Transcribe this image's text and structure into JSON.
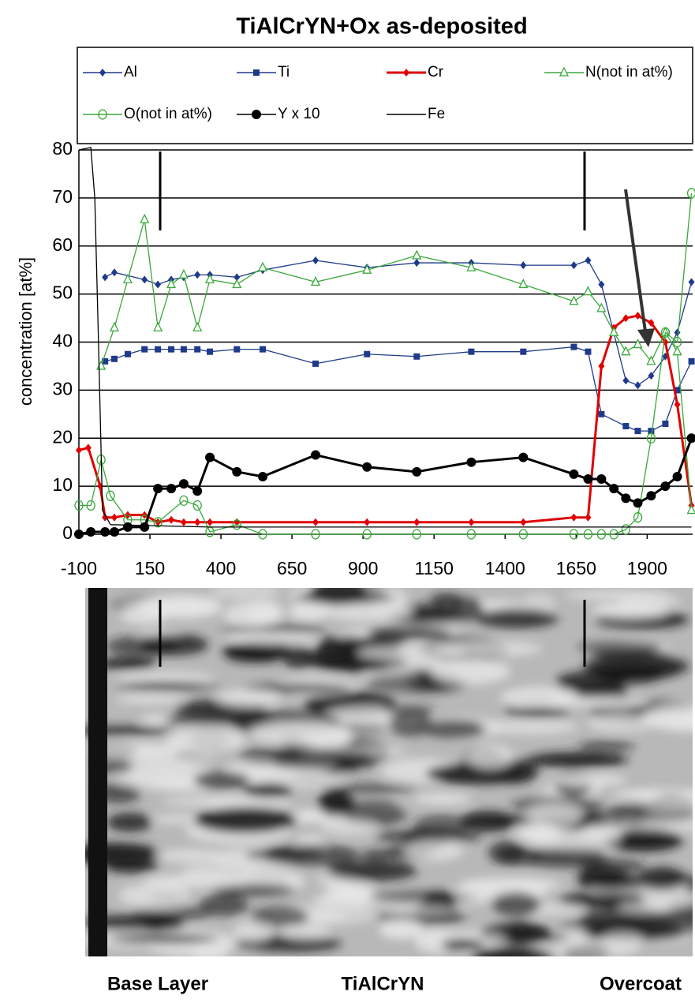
{
  "chart_data": {
    "type": "line",
    "title": "TiAlCrYN+Ox as-deposited",
    "ylabel": "concentration [at%]",
    "xlim": [
      -100,
      2060
    ],
    "xticks": [
      -100,
      150,
      400,
      650,
      900,
      1150,
      1400,
      1650,
      1900
    ],
    "ylim": [
      0,
      80
    ],
    "yticks": [
      0,
      10,
      20,
      30,
      40,
      50,
      60,
      70,
      80
    ],
    "grid": true,
    "series": [
      {
        "name": "Al",
        "color": "#1f3a8a",
        "marker": "diamond",
        "x": [
          -8,
          25,
          131,
          178,
          225,
          269,
          317,
          361,
          456,
          547,
          733,
          914,
          1089,
          1281,
          1464,
          1642,
          1692,
          1739,
          1825,
          1867,
          1914,
          1964,
          2006,
          2056
        ],
        "values": [
          53.5,
          54.5,
          53,
          52,
          53,
          53.5,
          54,
          54,
          53.5,
          55,
          57,
          55.5,
          56.5,
          56.5,
          56,
          56,
          57,
          52,
          32,
          31,
          33,
          37,
          42,
          52.5
        ]
      },
      {
        "name": "Ti",
        "color": "#1f3a8a",
        "marker": "square",
        "x": [
          -8,
          25,
          72,
          131,
          178,
          225,
          269,
          317,
          361,
          456,
          547,
          733,
          914,
          1089,
          1281,
          1464,
          1642,
          1692,
          1739,
          1825,
          1867,
          1914,
          1964,
          2006,
          2056
        ],
        "values": [
          36,
          36.5,
          37.5,
          38.5,
          38.5,
          38.5,
          38.5,
          38.5,
          38,
          38.5,
          38.5,
          35.5,
          37.5,
          37,
          38,
          38,
          39,
          38,
          25,
          22.5,
          21.5,
          21.5,
          23,
          30,
          36
        ]
      },
      {
        "name": "Cr",
        "color": "#e00000",
        "marker": "diamond",
        "x": [
          -100,
          -67,
          -25,
          -8,
          25,
          72,
          131,
          178,
          225,
          269,
          317,
          361,
          456,
          733,
          914,
          1089,
          1281,
          1464,
          1642,
          1692,
          1739,
          1783,
          1825,
          1867,
          1914,
          1964,
          2006,
          2056
        ],
        "values": [
          17.5,
          18,
          10,
          3.5,
          3.5,
          4,
          4,
          2.5,
          3,
          2.5,
          2.5,
          2.5,
          2.5,
          2.5,
          2.5,
          2.5,
          2.5,
          2.5,
          3.5,
          3.5,
          35,
          43,
          45,
          45.5,
          44,
          40,
          27,
          6
        ]
      },
      {
        "name": "N(not in at%)",
        "color": "#3aa83a",
        "marker": "triangle",
        "x": [
          -22,
          25,
          72,
          131,
          178,
          225,
          269,
          317,
          361,
          456,
          547,
          733,
          914,
          1089,
          1281,
          1464,
          1642,
          1692,
          1739,
          1783,
          1825,
          1867,
          1914,
          1964,
          2006,
          2056
        ],
        "values": [
          35,
          43,
          53,
          65.5,
          43,
          52,
          54,
          43,
          53,
          52,
          55.5,
          52.5,
          55,
          58,
          55.5,
          52,
          48.5,
          50.5,
          47,
          42,
          38,
          39.5,
          36,
          42,
          38,
          5
        ]
      },
      {
        "name": "O(not in at%)",
        "color": "#3aa83a",
        "marker": "circle-open",
        "x": [
          -100,
          -58,
          -22,
          11,
          72,
          131,
          178,
          269,
          317,
          361,
          456,
          547,
          733,
          914,
          1089,
          1281,
          1464,
          1642,
          1692,
          1739,
          1783,
          1825,
          1867,
          1914,
          1964,
          2006,
          2056
        ],
        "values": [
          6,
          6,
          15.5,
          8,
          3,
          3,
          2.5,
          7,
          6,
          0.5,
          2,
          0,
          0,
          0,
          0,
          0,
          0,
          0,
          0,
          0,
          0,
          1,
          3.5,
          20,
          42,
          40,
          71
        ]
      },
      {
        "name": "Y x 10",
        "color": "#000000",
        "marker": "circle",
        "x": [
          -100,
          -58,
          -8,
          25,
          72,
          131,
          178,
          225,
          269,
          317,
          361,
          456,
          547,
          733,
          914,
          1089,
          1281,
          1464,
          1642,
          1692,
          1739,
          1783,
          1825,
          1867,
          1914,
          1964,
          2006,
          2056
        ],
        "values": [
          0,
          0.5,
          0.5,
          0.5,
          1.5,
          1.5,
          9.5,
          9.5,
          10.5,
          9,
          16,
          13,
          12,
          16.5,
          14,
          13,
          15,
          16,
          12.5,
          11.5,
          11.5,
          9.5,
          7.5,
          6.5,
          8,
          10,
          12,
          20
        ]
      },
      {
        "name": "Fe",
        "color": "#000000",
        "marker": "none",
        "x": [
          -100,
          -58,
          -44,
          -31,
          -17,
          11,
          361,
          2056
        ],
        "values": [
          80,
          80.5,
          70,
          40,
          5,
          2,
          1.5,
          1.5
        ]
      }
    ],
    "annotations": [
      "Base Layer",
      "TiAlCrYN",
      "Overcoat"
    ]
  }
}
